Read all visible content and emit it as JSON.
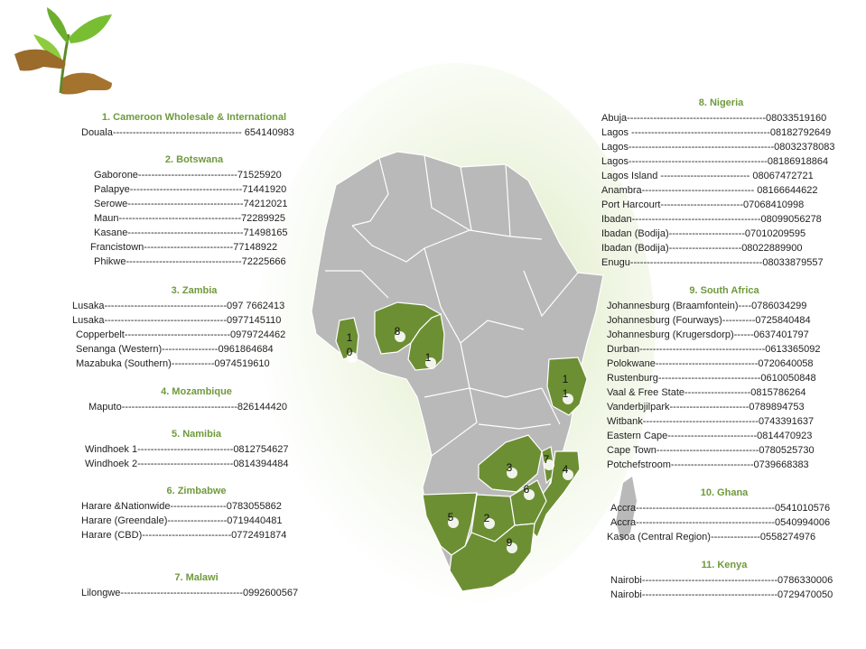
{
  "colors": {
    "highlight": "#6d8f34",
    "land": "#b9b9b9",
    "border": "#ffffff",
    "title": "#6f9a3c",
    "glow": "#cfe3a8"
  },
  "logo": {
    "icon": "hands-with-sprout-icon"
  },
  "markers": [
    {
      "id": "m1",
      "label": "1"
    },
    {
      "id": "m10a",
      "label": "1"
    },
    {
      "id": "m10b",
      "label": "0"
    },
    {
      "id": "m8",
      "label": "8"
    },
    {
      "id": "m11a",
      "label": "1"
    },
    {
      "id": "m11b",
      "label": "1"
    },
    {
      "id": "m3",
      "label": "3"
    },
    {
      "id": "m7",
      "label": "7"
    },
    {
      "id": "m4",
      "label": "4"
    },
    {
      "id": "m6",
      "label": "6"
    },
    {
      "id": "m5",
      "label": "5"
    },
    {
      "id": "m2",
      "label": "2"
    },
    {
      "id": "m9",
      "label": "9"
    }
  ],
  "sections": [
    {
      "name": "section-cameroon",
      "title": "1.  Cameroon Wholesale  & International",
      "rows": [
        "Douala--------------------------------------- 654140983"
      ]
    },
    {
      "name": "section-botswana",
      "title": "2. Botswana",
      "rows": [
        "Gaborone------------------------------71525920",
        "Palapye----------------------------------71441920",
        "Serowe-----------------------------------74212021",
        "Maun-------------------------------------72289925",
        "Kasane-----------------------------------71498165",
        "Francistown---------------------------77148922",
        "Phikwe-----------------------------------72225666"
      ]
    },
    {
      "name": "section-zambia",
      "title": "3. Zambia",
      "rows": [
        "Lusaka-------------------------------------097 7662413",
        "Lusaka-------------------------------------0977145110",
        "Copperbelt--------------------------------0979724462",
        "Senanga (Western)-----------------0961864684",
        "Mazabuka (Southern)-------------0974519610"
      ]
    },
    {
      "name": "section-mozambique",
      "title": "4. Mozambique",
      "rows": [
        "Maputo-----------------------------------826144420"
      ]
    },
    {
      "name": "section-namibia",
      "title": "5. Namibia",
      "rows": [
        "Windhoek 1-----------------------------0812754627",
        "Windhoek 2-----------------------------0814394484"
      ]
    },
    {
      "name": "section-zimbabwe",
      "title": "6. Zimbabwe",
      "rows": [
        "Harare &Nationwide-----------------0783055862",
        "Harare (Greendale)------------------0719440481",
        "Harare (CBD)---------------------------0772491874"
      ]
    },
    {
      "name": "section-malawi",
      "title": "7. Malawi",
      "rows": [
        "Lilongwe-------------------------------------0992600567"
      ]
    },
    {
      "name": "section-nigeria",
      "title": "8. Nigeria",
      "rows": [
        "Abuja------------------------------------------08033519160",
        "Lagos ------------------------------------------08182792649",
        "Lagos--------------------------------------------08032378083",
        "Lagos------------------------------------------08186918864",
        "Lagos Island --------------------------- 08067472721",
        "Anambra---------------------------------- 08166644622",
        "Port Harcourt-------------------------07068410998",
        "Ibadan---------------------------------------08099056278",
        "Ibadan (Bodija)-----------------------07010209595",
        "Ibadan (Bodija)----------------------08022889900",
        "Enugu----------------------------------------08033879557"
      ]
    },
    {
      "name": "section-south-africa",
      "title": "9. South Africa",
      "rows": [
        "Johannesburg (Braamfontein)----0786034299",
        "Johannesburg (Fourways)----------0725840484",
        "Johannesburg (Krugersdorp)------0637401797",
        "Durban--------------------------------------0613365092",
        "Polokwane-------------------------------0720640058",
        "Rustenburg-------------------------------0610050848",
        "Vaal & Free State--------------------0815786264",
        "Vanderbjilpark------------------------0789894753",
        "Witbank-----------------------------------0743391637",
        "Eastern Cape---------------------------0814470923",
        "Cape Town-------------------------------0780525730",
        "Potchefstroom-------------------------0739668383"
      ]
    },
    {
      "name": "section-ghana",
      "title": "10. Ghana",
      "rows": [
        "Accra------------------------------------------0541010576",
        "Accra------------------------------------------0540994006",
        "Kasoa (Central Region)---------------0558274976"
      ]
    },
    {
      "name": "section-kenya",
      "title": "11. Kenya",
      "rows": [
        "Nairobi-----------------------------------------0786330006",
        "Nairobi-----------------------------------------0729470050"
      ]
    }
  ]
}
